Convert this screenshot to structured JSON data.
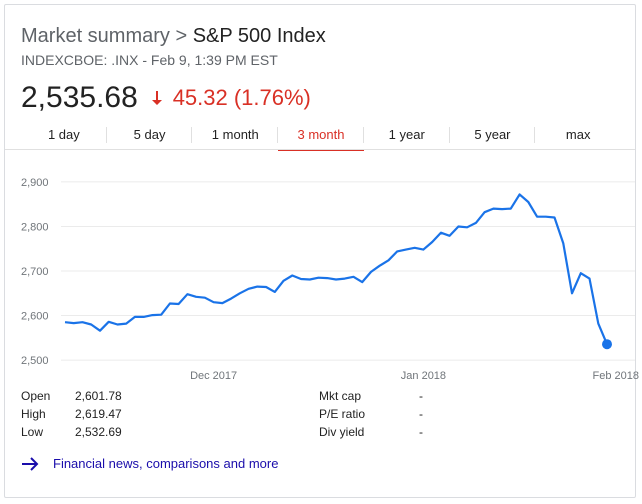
{
  "header": {
    "crumb": "Market summary",
    "separator": " > ",
    "index_name": "S&P 500 Index",
    "subtitle": "INDEXCBOE: .INX - Feb 9, 1:39 PM EST",
    "price": "2,535.68",
    "change": "45.32 (1.76%)",
    "change_icon": "down-arrow-icon",
    "change_color": "#d93025"
  },
  "tabs": [
    {
      "label": "1 day"
    },
    {
      "label": "5 day"
    },
    {
      "label": "1 month"
    },
    {
      "label": "3 month",
      "active": true
    },
    {
      "label": "1 year"
    },
    {
      "label": "5 year"
    },
    {
      "label": "max"
    }
  ],
  "chart_data": {
    "type": "line",
    "y_ticks": [
      "2,900",
      "2,800",
      "2,700",
      "2,600",
      "2,500"
    ],
    "y_tick_values": [
      2900,
      2800,
      2700,
      2600,
      2500
    ],
    "ylim": [
      2480,
      2920
    ],
    "x_ticks": [
      "Dec 2017",
      "Jan 2018",
      "Feb 2018"
    ],
    "x_tick_positions": [
      17,
      41,
      63
    ],
    "grid": true,
    "line_color": "#1a73e8",
    "series": [
      {
        "values": [
          2585,
          2583,
          2585,
          2580,
          2566,
          2586,
          2580,
          2582,
          2597,
          2597,
          2601,
          2602,
          2627,
          2626,
          2648,
          2642,
          2640,
          2630,
          2628,
          2638,
          2650,
          2660,
          2665,
          2664,
          2653,
          2678,
          2690,
          2682,
          2681,
          2685,
          2684,
          2681,
          2683,
          2687,
          2675,
          2698,
          2712,
          2724,
          2744,
          2748,
          2752,
          2748,
          2765,
          2786,
          2779,
          2800,
          2798,
          2808,
          2832,
          2840,
          2839,
          2840,
          2872,
          2855,
          2822,
          2822,
          2820,
          2762,
          2650,
          2695,
          2683,
          2582,
          2535.68
        ]
      }
    ]
  },
  "stats_left": [
    {
      "label": "Open",
      "value": "2,601.78"
    },
    {
      "label": "High",
      "value": "2,619.47"
    },
    {
      "label": "Low",
      "value": "2,532.69"
    }
  ],
  "stats_right": [
    {
      "label": "Mkt cap",
      "value": "-"
    },
    {
      "label": "P/E ratio",
      "value": "-"
    },
    {
      "label": "Div yield",
      "value": "-"
    }
  ],
  "footer": {
    "link_label": "Financial news, comparisons and more",
    "link_icon": "arrow-right-icon"
  }
}
